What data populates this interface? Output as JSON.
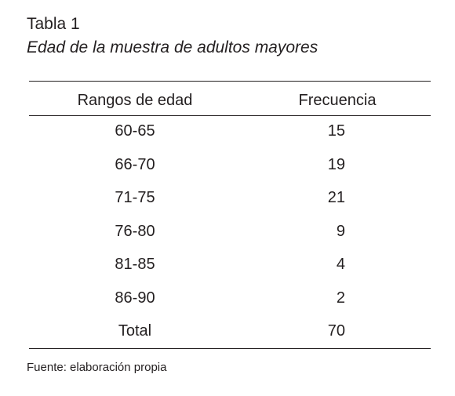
{
  "header": {
    "title": "Tabla 1",
    "subtitle": "Edad de la muestra de adultos mayores"
  },
  "table": {
    "columns": [
      "Rangos de edad",
      "Frecuencia"
    ],
    "rows": [
      [
        "60-65",
        15
      ],
      [
        "66-70",
        19
      ],
      [
        "71-75",
        21
      ],
      [
        "76-80",
        9
      ],
      [
        "81-85",
        4
      ],
      [
        "86-90",
        2
      ],
      [
        "Total",
        70
      ]
    ]
  },
  "footer": {
    "note": "Fuente: elaboración propia"
  }
}
